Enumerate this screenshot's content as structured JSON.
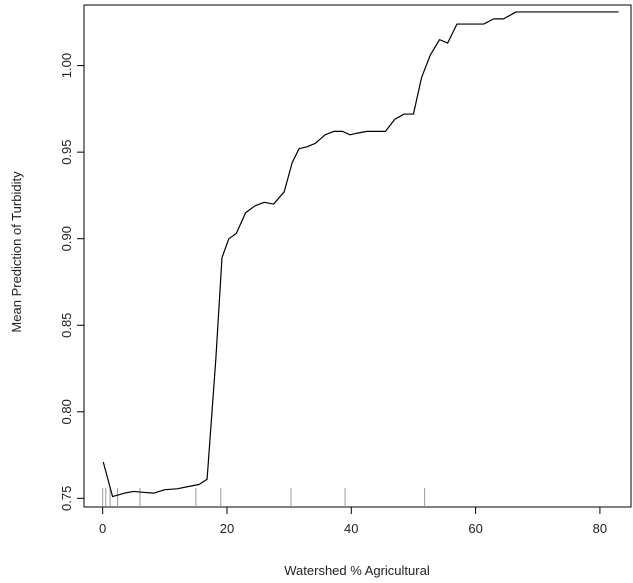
{
  "chart_data": {
    "type": "line",
    "xlabel": "Watershed % Agricultural",
    "ylabel": "Mean Prediction of Turbidity",
    "xlim": [
      -3,
      85
    ],
    "ylim": [
      0.745,
      1.035
    ],
    "grid": false,
    "line_color": "#000000",
    "xticks": [
      0,
      20,
      40,
      60,
      80
    ],
    "yticks": [
      0.75,
      0.8,
      0.85,
      0.9,
      0.95,
      1.0
    ],
    "ytick_labels": [
      "0.75",
      "0.80",
      "0.85",
      "0.90",
      "0.95",
      "1.00"
    ],
    "series": [
      {
        "x": [
          0.1,
          1.6,
          3.5,
          5.0,
          6.5,
          8.2,
          10.0,
          12.0,
          14.0,
          15.5,
          16.8,
          18.2,
          19.2,
          20.3,
          21.5,
          23.0,
          24.5,
          26.0,
          27.5,
          29.2,
          30.5,
          31.6,
          32.8,
          34.2,
          35.8,
          37.2,
          38.6,
          39.8,
          41.0,
          42.5,
          44.0,
          45.5,
          47.0,
          48.5,
          50.0,
          51.3,
          52.7,
          54.2,
          55.5,
          57.0,
          58.5,
          60.0,
          61.3,
          62.9,
          64.5,
          66.5,
          68.0,
          69.5,
          71.2,
          73.0,
          75.5,
          78.0,
          80.5,
          83.0
        ],
        "y": [
          0.771,
          0.751,
          0.753,
          0.754,
          0.7535,
          0.753,
          0.755,
          0.7555,
          0.757,
          0.758,
          0.761,
          0.83,
          0.889,
          0.9,
          0.903,
          0.915,
          0.919,
          0.921,
          0.92,
          0.927,
          0.944,
          0.952,
          0.953,
          0.955,
          0.96,
          0.962,
          0.962,
          0.96,
          0.961,
          0.962,
          0.962,
          0.962,
          0.969,
          0.972,
          0.972,
          0.993,
          1.006,
          1.015,
          1.013,
          1.024,
          1.024,
          1.024,
          1.024,
          1.027,
          1.027,
          1.031,
          1.031,
          1.031,
          1.031,
          1.031,
          1.031,
          1.031,
          1.031,
          1.031
        ]
      }
    ],
    "rug": [
      0.0,
      0.5,
      1.2,
      2.4,
      6.0,
      15.0,
      19.0,
      30.3,
      39.0,
      51.8
    ]
  }
}
